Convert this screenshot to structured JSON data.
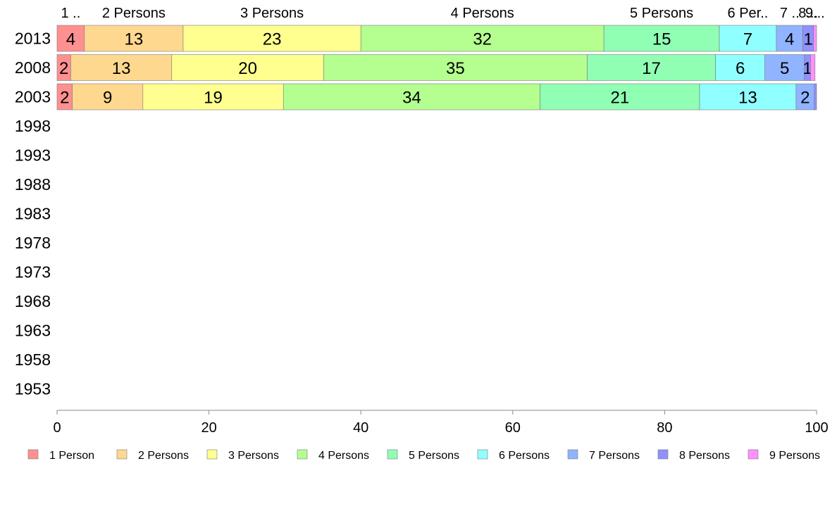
{
  "chart_data": {
    "type": "bar",
    "orientation": "horizontal",
    "stacked": true,
    "categories": [
      "2013",
      "2008",
      "2003",
      "1998",
      "1993",
      "1988",
      "1983",
      "1978",
      "1973",
      "1968",
      "1963",
      "1958",
      "1953"
    ],
    "series": [
      {
        "name": "1 Person",
        "color": "#ff9090",
        "values": [
          3.6,
          1.8,
          2.0,
          null,
          null,
          null,
          null,
          null,
          null,
          null,
          null,
          null,
          null
        ],
        "labels": [
          "4",
          "2",
          "2"
        ]
      },
      {
        "name": "2 Persons",
        "color": "#ffd890",
        "values": [
          13.0,
          13.3,
          9.3,
          null,
          null,
          null,
          null,
          null,
          null,
          null,
          null,
          null,
          null
        ],
        "labels": [
          "13",
          "13",
          "9"
        ]
      },
      {
        "name": "3 Persons",
        "color": "#ffff90",
        "values": [
          23.4,
          20.0,
          18.5,
          null,
          null,
          null,
          null,
          null,
          null,
          null,
          null,
          null,
          null
        ],
        "labels": [
          "23",
          "20",
          "19"
        ]
      },
      {
        "name": "4 Persons",
        "color": "#b4ff90",
        "values": [
          32.0,
          34.7,
          33.8,
          null,
          null,
          null,
          null,
          null,
          null,
          null,
          null,
          null,
          null
        ],
        "labels": [
          "32",
          "35",
          "34"
        ]
      },
      {
        "name": "5 Persons",
        "color": "#90ffb4",
        "values": [
          15.2,
          16.9,
          21.0,
          null,
          null,
          null,
          null,
          null,
          null,
          null,
          null,
          null,
          null
        ],
        "labels": [
          "15",
          "17",
          "21"
        ]
      },
      {
        "name": "6 Persons",
        "color": "#90ffff",
        "values": [
          7.5,
          6.5,
          12.7,
          null,
          null,
          null,
          null,
          null,
          null,
          null,
          null,
          null,
          null
        ],
        "labels": [
          "7",
          "6",
          "13"
        ]
      },
      {
        "name": "7 Persons",
        "color": "#90b4ff",
        "values": [
          3.5,
          5.2,
          2.4,
          null,
          null,
          null,
          null,
          null,
          null,
          null,
          null,
          null,
          null
        ],
        "labels": [
          "4",
          "5",
          "2"
        ]
      },
      {
        "name": "8 Persons",
        "color": "#9090ff",
        "values": [
          1.4,
          0.8,
          0.3,
          null,
          null,
          null,
          null,
          null,
          null,
          null,
          null,
          null,
          null
        ],
        "labels": [
          "1",
          "1",
          ""
        ]
      },
      {
        "name": "9 Persons",
        "color": "#ff90ff",
        "values": [
          0.4,
          0.6,
          0.0,
          null,
          null,
          null,
          null,
          null,
          null,
          null,
          null,
          null,
          null
        ],
        "labels": [
          "",
          "",
          ""
        ]
      }
    ],
    "top_labels": [
      "1 ..",
      "2 Persons",
      "3 Persons",
      "4 Persons",
      "5 Persons",
      "6 Per..",
      "7 ..",
      "8...",
      "9..."
    ],
    "xlim": [
      0,
      100
    ],
    "xticks": [
      0,
      20,
      40,
      60,
      80,
      100
    ],
    "grid": false,
    "legend_position": "bottom"
  }
}
